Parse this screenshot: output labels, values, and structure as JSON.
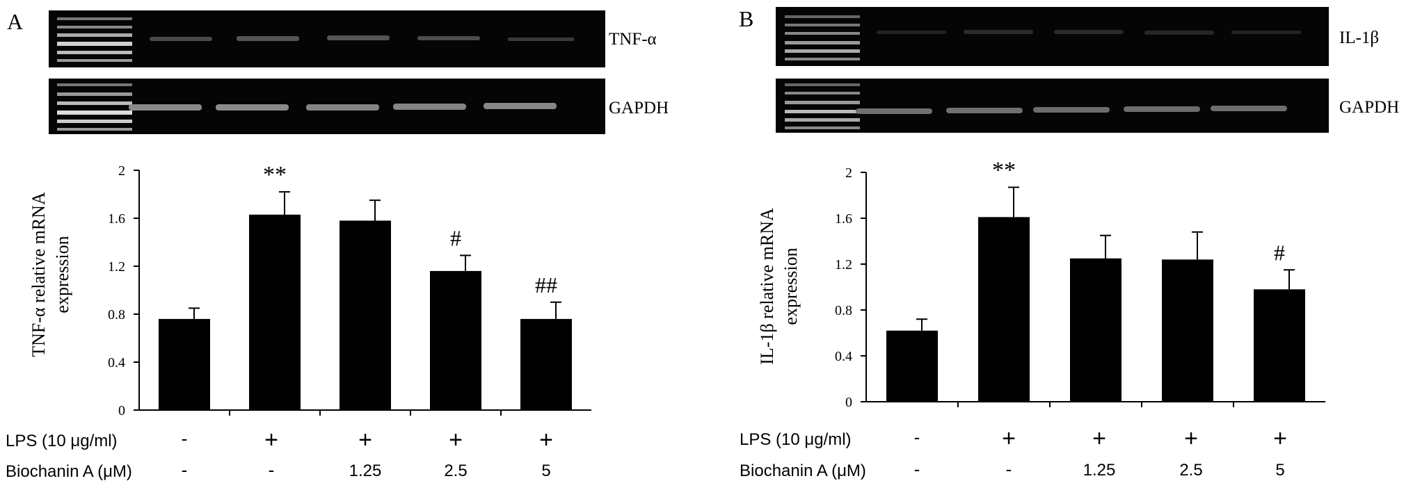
{
  "panels": [
    {
      "letter": "A",
      "gel_labels": [
        "TNF-α",
        "GAPDH"
      ],
      "lps_label": "LPS (10 μg/ml)",
      "biochanin_label": "Biochanin A (μM)",
      "lps_values": [
        "-",
        "+",
        "+",
        "+",
        "+"
      ],
      "biochanin_values": [
        "-",
        "-",
        "1.25",
        "2.5",
        "5"
      ]
    },
    {
      "letter": "B",
      "gel_labels": [
        "IL-1β",
        "GAPDH"
      ],
      "lps_label": "LPS (10 μg/ml)",
      "biochanin_label": "Biochanin A (μM)",
      "lps_values": [
        "-",
        "+",
        "+",
        "+",
        "+"
      ],
      "biochanin_values": [
        "-",
        "-",
        "1.25",
        "2.5",
        "5"
      ]
    }
  ],
  "chart_data": [
    {
      "type": "bar",
      "panel": "A",
      "ylabel": "TNF-α relative mRNA expression",
      "ylim": [
        0,
        2
      ],
      "yticks": [
        "0",
        "0.4",
        "0.8",
        "1.2",
        "1.6",
        "2"
      ],
      "values": [
        0.76,
        1.63,
        1.58,
        1.16,
        0.76
      ],
      "errors": [
        0.09,
        0.19,
        0.17,
        0.13,
        0.14
      ],
      "annotations": [
        "",
        "**",
        "",
        "#",
        "##"
      ],
      "bar_color": "#000000"
    },
    {
      "type": "bar",
      "panel": "B",
      "ylabel": "IL-1β relative mRNA expression",
      "ylim": [
        0,
        2
      ],
      "yticks": [
        "0",
        "0.4",
        "0.8",
        "1.2",
        "1.6",
        "2"
      ],
      "values": [
        0.62,
        1.61,
        1.25,
        1.24,
        0.98
      ],
      "errors": [
        0.1,
        0.26,
        0.2,
        0.24,
        0.17
      ],
      "annotations": [
        "",
        "**",
        "",
        "",
        "#"
      ],
      "bar_color": "#000000"
    }
  ]
}
